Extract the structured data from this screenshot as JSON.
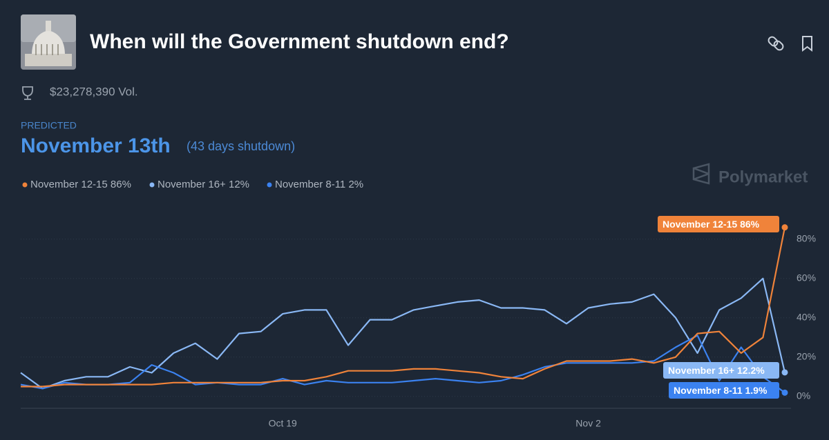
{
  "header": {
    "title": "When will the Government shutdown end?",
    "volume": "$23,278,390 Vol.",
    "predicted_label": "PREDICTED",
    "predicted_value": "November 13th",
    "predicted_note": "(43 days shutdown)",
    "brand": "Polymarket"
  },
  "chart_data": {
    "type": "line",
    "categories": [
      null,
      null,
      null,
      null,
      null,
      null,
      null,
      null,
      null,
      null,
      null,
      null,
      "Oct 19",
      null,
      null,
      null,
      null,
      null,
      null,
      null,
      null,
      null,
      null,
      null,
      null,
      null,
      "Nov 2",
      null,
      null,
      null,
      null,
      null,
      null,
      null,
      null,
      null
    ],
    "series": [
      {
        "name": "November 12-15",
        "legend_value": "86%",
        "end_label": "86%",
        "color": "#f0833a",
        "values": [
          5,
          5,
          6,
          6,
          6,
          6,
          6,
          7,
          7,
          7,
          7,
          7,
          8,
          8,
          10,
          13,
          13,
          13,
          14,
          14,
          13,
          12,
          10,
          9,
          14,
          18,
          18,
          18,
          19,
          17,
          20,
          32,
          33,
          22,
          30,
          86
        ]
      },
      {
        "name": "November 16+",
        "legend_value": "12%",
        "end_label": "12.2%",
        "color": "#8ab8f5",
        "values": [
          12,
          4,
          8,
          10,
          10,
          15,
          12,
          22,
          27,
          19,
          32,
          33,
          42,
          44,
          44,
          26,
          39,
          39,
          44,
          46,
          48,
          49,
          45,
          45,
          44,
          37,
          45,
          47,
          48,
          52,
          40,
          22,
          44,
          50,
          60,
          12.2
        ]
      },
      {
        "name": "November 8-11",
        "legend_value": "2%",
        "end_label": "1.9%",
        "color": "#3b82f0",
        "values": [
          6,
          4,
          7,
          6,
          6,
          7,
          16,
          12,
          6,
          7,
          6,
          6,
          9,
          6,
          8,
          7,
          7,
          7,
          8,
          9,
          8,
          7,
          8,
          11,
          15,
          17,
          17,
          17,
          17,
          18,
          25,
          31,
          8,
          25,
          10,
          1.9
        ]
      }
    ],
    "ylim": [
      -5,
      95
    ],
    "yticks": [
      {
        "value": 0,
        "label": "0%"
      },
      {
        "value": 20,
        "label": "20%"
      },
      {
        "value": 40,
        "label": "40%"
      },
      {
        "value": 60,
        "label": "60%"
      },
      {
        "value": 80,
        "label": "80%"
      }
    ],
    "grid": true
  }
}
